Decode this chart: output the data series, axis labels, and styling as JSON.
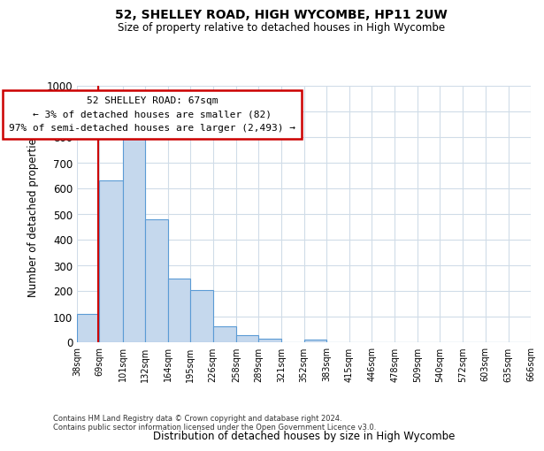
{
  "title": "52, SHELLEY ROAD, HIGH WYCOMBE, HP11 2UW",
  "subtitle": "Size of property relative to detached houses in High Wycombe",
  "xlabel": "Distribution of detached houses by size in High Wycombe",
  "ylabel": "Number of detached properties",
  "footnote1": "Contains HM Land Registry data © Crown copyright and database right 2024.",
  "footnote2": "Contains public sector information licensed under the Open Government Licence v3.0.",
  "bin_labels": [
    "38sqm",
    "69sqm",
    "101sqm",
    "132sqm",
    "164sqm",
    "195sqm",
    "226sqm",
    "258sqm",
    "289sqm",
    "321sqm",
    "352sqm",
    "383sqm",
    "415sqm",
    "446sqm",
    "478sqm",
    "509sqm",
    "540sqm",
    "572sqm",
    "603sqm",
    "635sqm",
    "666sqm"
  ],
  "bar_values": [
    110,
    630,
    800,
    480,
    250,
    205,
    62,
    28,
    15,
    0,
    10,
    0,
    0,
    0,
    0,
    0,
    0,
    0,
    0,
    0
  ],
  "bar_color": "#c5d8ed",
  "bar_edge_color": "#5b9bd5",
  "ylim": [
    0,
    1000
  ],
  "yticks": [
    0,
    100,
    200,
    300,
    400,
    500,
    600,
    700,
    800,
    900,
    1000
  ],
  "property_line_x": 67,
  "bin_edges_sqm": [
    38,
    69,
    101,
    132,
    164,
    195,
    226,
    258,
    289,
    321,
    352,
    383,
    415,
    446,
    478,
    509,
    540,
    572,
    603,
    635,
    666
  ],
  "annotation_title": "52 SHELLEY ROAD: 67sqm",
  "annotation_line1": "← 3% of detached houses are smaller (82)",
  "annotation_line2": "97% of semi-detached houses are larger (2,493) →",
  "annotation_box_color": "#ffffff",
  "annotation_box_edge_color": "#cc0000",
  "red_line_color": "#cc0000",
  "grid_color": "#d0dce8",
  "bg_color": "#ffffff"
}
